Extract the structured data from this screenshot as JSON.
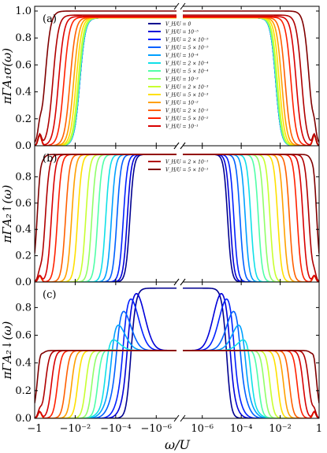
{
  "chart_data": {
    "type": "line",
    "xlabel": "ω/U",
    "x_ticks": [
      "−1",
      "−10⁻²",
      "−10⁻⁴",
      "−10⁻⁶",
      "10⁻⁶",
      "10⁻⁴",
      "10⁻²",
      "1"
    ],
    "x_tick_values": [
      -1,
      -0.01,
      -0.0001,
      -1e-06,
      1e-06,
      0.0001,
      0.01,
      1
    ],
    "xlim": [
      -1,
      1
    ],
    "x_scale": "symlog with axis break at 0",
    "legend_placement": "upper-center of panels (a) and (b)",
    "series": [
      {
        "name": "V_H/U = 0",
        "V_H": 0,
        "color": "#00008f"
      },
      {
        "name": "V_H/U = 10⁻⁵",
        "V_H": 1e-05,
        "color": "#0000d9"
      },
      {
        "name": "V_H/U = 2 × 10⁻⁵",
        "V_H": 2e-05,
        "color": "#0020ff"
      },
      {
        "name": "V_H/U = 5 × 10⁻⁵",
        "V_H": 5e-05,
        "color": "#0060ff"
      },
      {
        "name": "V_H/U = 10⁻⁴",
        "V_H": 0.0001,
        "color": "#00a0ff"
      },
      {
        "name": "V_H/U = 2 × 10⁻⁴",
        "V_H": 0.0002,
        "color": "#10e0e8"
      },
      {
        "name": "V_H/U = 5 × 10⁻⁴",
        "V_H": 0.0005,
        "color": "#50ffa8"
      },
      {
        "name": "V_H/U = 10⁻³",
        "V_H": 0.001,
        "color": "#90ff68"
      },
      {
        "name": "V_H/U = 2 × 10⁻³",
        "V_H": 0.002,
        "color": "#c8ff30"
      },
      {
        "name": "V_H/U = 5 × 10⁻³",
        "V_H": 0.005,
        "color": "#ffe000"
      },
      {
        "name": "V_H/U = 10⁻²",
        "V_H": 0.01,
        "color": "#ffa000"
      },
      {
        "name": "V_H/U = 2 × 10⁻²",
        "V_H": 0.02,
        "color": "#ff6000"
      },
      {
        "name": "V_H/U = 5 × 10⁻²",
        "V_H": 0.05,
        "color": "#ff2000"
      },
      {
        "name": "V_H/U = 10⁻¹",
        "V_H": 0.1,
        "color": "#d80000"
      },
      {
        "name": "V_H/U = 2 × 10⁻¹",
        "V_H": 0.2,
        "color": "#b00000"
      },
      {
        "name": "V_H/U = 5 × 10⁻¹",
        "V_H": 0.5,
        "color": "#800000"
      }
    ],
    "panels": [
      {
        "id": "a",
        "label": "(a)",
        "ylabel": "πΓA₁σ(ω)",
        "ylim": [
          0,
          1.0
        ],
        "y_ticks": [
          "0.0",
          "0.2",
          "0.4",
          "0.6",
          "0.8",
          "1.0"
        ],
        "y_tick_values": [
          0,
          0.2,
          0.4,
          0.6,
          0.8,
          1.0
        ],
        "description": "Plateau ≈0.95–1.0 near ω=0 for all V_H; curves fall to ≈0 near |ω|≈10⁻², with larger V_H extending further; small bump ≈0.08 near |ω|≈1"
      },
      {
        "id": "b",
        "label": "(b)",
        "ylabel": "πΓA₂↑(ω)",
        "ylim": [
          0,
          1.0
        ],
        "y_ticks": [
          "0.0",
          "0.2",
          "0.4",
          "0.6",
          "0.8"
        ],
        "y_tick_values": [
          0,
          0.2,
          0.4,
          0.6,
          0.8
        ],
        "description": "Plateau ≈0.97 near ω=0; drop-off edge moves from |ω|≈10⁻⁵ (small V_H) toward |ω|≈10⁻¹ (large V_H)"
      },
      {
        "id": "c",
        "label": "(c)",
        "ylabel": "πΓA₂↓(ω)",
        "ylim": [
          0,
          0.95
        ],
        "y_ticks": [
          "0.0",
          "0.2",
          "0.4",
          "0.6",
          "0.8"
        ],
        "y_tick_values": [
          0,
          0.2,
          0.4,
          0.6,
          0.8
        ],
        "description": "Small V_H: peak ≈0.94 near ω=0 that splits into side peaks at ±V_H and fades; large V_H: plateau ≈0.49 extending to |ω|≈V_H"
      }
    ]
  }
}
